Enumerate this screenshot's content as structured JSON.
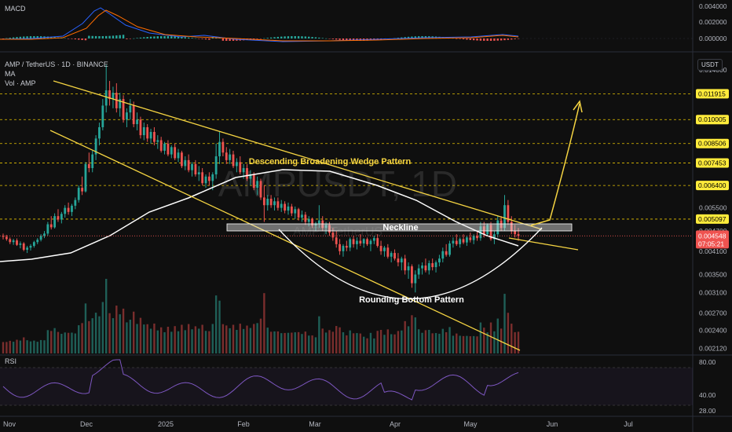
{
  "header": {
    "macd_label": "MACD",
    "symbol_line": "AMP / TetherUS · 1D · BINANCE",
    "ma_label": "MA",
    "vol_label": "Vol · AMP",
    "rsi_label": "RSI",
    "currency_button": "USDT"
  },
  "watermark": {
    "main": "AMPUSDT, 1D",
    "sub": "AMP / TetherUS"
  },
  "colors": {
    "up": "#26a69a",
    "down": "#ef5350",
    "pattern": "#f5d442",
    "ma": "#ffffff",
    "rsi": "#7e57c2",
    "macd": "#2962ff",
    "signal": "#ff6d00"
  },
  "chart_data": {
    "type": "candlestick",
    "price_axis": {
      "scale": "log",
      "range": [
        0.00205,
        0.0155
      ],
      "ticks": [
        "0.014000",
        "0.005500",
        "0.004700",
        "0.004100",
        "0.003500",
        "0.003100",
        "0.002700",
        "0.002400",
        "0.002120"
      ]
    },
    "x_axis": {
      "ticks": [
        "Nov",
        "Dec",
        "2025",
        "Feb",
        "Mar",
        "Apr",
        "May",
        "Jun",
        "Jul"
      ]
    },
    "target_levels": [
      {
        "value": "0.011915",
        "color": "#ffeb3b"
      },
      {
        "value": "0.010005",
        "color": "#ffeb3b"
      },
      {
        "value": "0.008506",
        "color": "#ffeb3b"
      },
      {
        "value": "0.007453",
        "color": "#ffeb3b"
      },
      {
        "value": "0.006400",
        "color": "#ffeb3b"
      },
      {
        "value": "0.005097",
        "color": "#ffeb3b"
      }
    ],
    "current_price": {
      "value": "0.004548",
      "countdown": "07:05:21",
      "color": "#ef5350"
    },
    "annotations": {
      "wedge": "Descending Broadening Wedge Pattern",
      "neckline": "Neckline",
      "bottom": "Rounding Bottom Pattern"
    },
    "macd_axis": {
      "ticks": [
        "0.004000",
        "0.002000",
        "0.000000"
      ]
    },
    "rsi_axis": {
      "ticks": [
        "80.00",
        "40.00",
        "28.00"
      ]
    },
    "candles": [
      [
        0.00455,
        0.00462,
        0.00444,
        0.00452
      ],
      [
        0.00452,
        0.00458,
        0.0044,
        0.00445
      ],
      [
        0.00445,
        0.0045,
        0.0043,
        0.00436
      ],
      [
        0.00436,
        0.00446,
        0.00428,
        0.00441
      ],
      [
        0.00441,
        0.00447,
        0.00425,
        0.00428
      ],
      [
        0.00428,
        0.00438,
        0.00418,
        0.00432
      ],
      [
        0.00432,
        0.00436,
        0.0041,
        0.00414
      ],
      [
        0.00414,
        0.00425,
        0.00405,
        0.0042
      ],
      [
        0.0042,
        0.0043,
        0.00412,
        0.00425
      ],
      [
        0.00425,
        0.0044,
        0.0042,
        0.00436
      ],
      [
        0.00436,
        0.00448,
        0.0043,
        0.00443
      ],
      [
        0.00443,
        0.0046,
        0.00438,
        0.00455
      ],
      [
        0.00455,
        0.0047,
        0.00448,
        0.00462
      ],
      [
        0.00462,
        0.005,
        0.00455,
        0.00492
      ],
      [
        0.00492,
        0.0052,
        0.00475,
        0.00482
      ],
      [
        0.00482,
        0.0053,
        0.00478,
        0.0052
      ],
      [
        0.0052,
        0.00545,
        0.005,
        0.00508
      ],
      [
        0.00508,
        0.00535,
        0.00495,
        0.00528
      ],
      [
        0.00528,
        0.0056,
        0.00515,
        0.0055
      ],
      [
        0.0055,
        0.0057,
        0.00525,
        0.00535
      ],
      [
        0.00535,
        0.00565,
        0.0052,
        0.00558
      ],
      [
        0.00558,
        0.0059,
        0.00545,
        0.0058
      ],
      [
        0.0058,
        0.0064,
        0.0057,
        0.0063
      ],
      [
        0.0063,
        0.0068,
        0.006,
        0.00615
      ],
      [
        0.00615,
        0.0075,
        0.0061,
        0.0074
      ],
      [
        0.0074,
        0.008,
        0.007,
        0.0072
      ],
      [
        0.0072,
        0.0081,
        0.007,
        0.0079
      ],
      [
        0.0079,
        0.009,
        0.0076,
        0.0088
      ],
      [
        0.0088,
        0.0098,
        0.0084,
        0.0095
      ],
      [
        0.0095,
        0.0115,
        0.0093,
        0.011
      ],
      [
        0.011,
        0.0145,
        0.0105,
        0.0122
      ],
      [
        0.0122,
        0.013,
        0.011,
        0.0115
      ],
      [
        0.0115,
        0.0125,
        0.0108,
        0.012
      ],
      [
        0.012,
        0.0128,
        0.0105,
        0.0108
      ],
      [
        0.0108,
        0.012,
        0.0102,
        0.0115
      ],
      [
        0.0115,
        0.0118,
        0.0098,
        0.01
      ],
      [
        0.01,
        0.0108,
        0.0095,
        0.0105
      ],
      [
        0.0105,
        0.0115,
        0.01,
        0.011
      ],
      [
        0.011,
        0.0113,
        0.0095,
        0.0097
      ],
      [
        0.0097,
        0.0105,
        0.0093,
        0.01
      ],
      [
        0.01,
        0.0102,
        0.0088,
        0.009
      ],
      [
        0.009,
        0.0098,
        0.0087,
        0.0095
      ],
      [
        0.0095,
        0.0097,
        0.0086,
        0.0088
      ],
      [
        0.0088,
        0.0094,
        0.0085,
        0.0092
      ],
      [
        0.0092,
        0.0095,
        0.0084,
        0.0086
      ],
      [
        0.0086,
        0.009,
        0.0082,
        0.0087
      ],
      [
        0.0087,
        0.0089,
        0.008,
        0.0081
      ],
      [
        0.0081,
        0.0086,
        0.0079,
        0.0085
      ],
      [
        0.0085,
        0.0087,
        0.0078,
        0.0079
      ],
      [
        0.0079,
        0.0084,
        0.0077,
        0.0083
      ],
      [
        0.0083,
        0.0085,
        0.0076,
        0.0077
      ],
      [
        0.0077,
        0.0082,
        0.0075,
        0.008
      ],
      [
        0.008,
        0.0081,
        0.0072,
        0.0073
      ],
      [
        0.0073,
        0.0078,
        0.0071,
        0.0076
      ],
      [
        0.0076,
        0.0079,
        0.007,
        0.0071
      ],
      [
        0.0071,
        0.0075,
        0.0068,
        0.0074
      ],
      [
        0.0074,
        0.0076,
        0.0068,
        0.0069
      ],
      [
        0.0069,
        0.0073,
        0.0066,
        0.007
      ],
      [
        0.007,
        0.0072,
        0.0064,
        0.0065
      ],
      [
        0.0065,
        0.0069,
        0.0063,
        0.0068
      ],
      [
        0.0068,
        0.007,
        0.0064,
        0.0066
      ],
      [
        0.0066,
        0.007,
        0.0062,
        0.0069
      ],
      [
        0.0069,
        0.0085,
        0.0067,
        0.0078
      ],
      [
        0.0078,
        0.0092,
        0.0074,
        0.0086
      ],
      [
        0.0086,
        0.0088,
        0.0078,
        0.008
      ],
      [
        0.008,
        0.0083,
        0.0074,
        0.0076
      ],
      [
        0.0076,
        0.0082,
        0.0074,
        0.0079
      ],
      [
        0.0079,
        0.0081,
        0.0072,
        0.0073
      ],
      [
        0.0073,
        0.0077,
        0.007,
        0.0075
      ],
      [
        0.0075,
        0.0078,
        0.0069,
        0.007
      ],
      [
        0.007,
        0.0074,
        0.0067,
        0.0072
      ],
      [
        0.0072,
        0.0074,
        0.0066,
        0.0067
      ],
      [
        0.0067,
        0.0071,
        0.0064,
        0.0069
      ],
      [
        0.0069,
        0.007,
        0.0062,
        0.0063
      ],
      [
        0.0063,
        0.0068,
        0.006,
        0.0066
      ],
      [
        0.0066,
        0.0067,
        0.0058,
        0.0059
      ],
      [
        0.0059,
        0.0064,
        0.005,
        0.0056
      ],
      [
        0.0056,
        0.006,
        0.0054,
        0.00585
      ],
      [
        0.00585,
        0.006,
        0.0055,
        0.0056
      ],
      [
        0.0056,
        0.0059,
        0.0054,
        0.00575
      ],
      [
        0.00575,
        0.0059,
        0.0054,
        0.0055
      ],
      [
        0.0055,
        0.0058,
        0.00535,
        0.00565
      ],
      [
        0.00565,
        0.00575,
        0.0053,
        0.0054
      ],
      [
        0.0054,
        0.0057,
        0.00525,
        0.00555
      ],
      [
        0.00555,
        0.00565,
        0.0052,
        0.0053
      ],
      [
        0.0053,
        0.00555,
        0.0051,
        0.00545
      ],
      [
        0.00545,
        0.0055,
        0.00505,
        0.00515
      ],
      [
        0.00515,
        0.0054,
        0.005,
        0.00525
      ],
      [
        0.00525,
        0.00535,
        0.0049,
        0.005
      ],
      [
        0.005,
        0.0052,
        0.00485,
        0.0051
      ],
      [
        0.0051,
        0.00515,
        0.0048,
        0.00488
      ],
      [
        0.00488,
        0.005,
        0.0047,
        0.00495
      ],
      [
        0.00495,
        0.0056,
        0.0048,
        0.00505
      ],
      [
        0.00505,
        0.0052,
        0.0047,
        0.0048
      ],
      [
        0.0048,
        0.005,
        0.0046,
        0.0049
      ],
      [
        0.0049,
        0.005,
        0.00455,
        0.00465
      ],
      [
        0.00465,
        0.0048,
        0.0044,
        0.0045
      ],
      [
        0.0045,
        0.0047,
        0.0042,
        0.0043
      ],
      [
        0.0043,
        0.00445,
        0.004,
        0.0041
      ],
      [
        0.0041,
        0.0043,
        0.00395,
        0.00425
      ],
      [
        0.00425,
        0.0044,
        0.0041,
        0.0042
      ],
      [
        0.0042,
        0.0045,
        0.0041,
        0.00445
      ],
      [
        0.00445,
        0.00455,
        0.0042,
        0.0043
      ],
      [
        0.0043,
        0.0045,
        0.00415,
        0.0044
      ],
      [
        0.0044,
        0.0046,
        0.00425,
        0.00432
      ],
      [
        0.00432,
        0.00448,
        0.0042,
        0.00445
      ],
      [
        0.00445,
        0.0045,
        0.00425,
        0.0043
      ],
      [
        0.0043,
        0.00445,
        0.0041,
        0.0044
      ],
      [
        0.0044,
        0.00455,
        0.0043,
        0.00448
      ],
      [
        0.00448,
        0.0046,
        0.0042,
        0.00425
      ],
      [
        0.00425,
        0.0044,
        0.004,
        0.0041
      ],
      [
        0.0041,
        0.00425,
        0.00395,
        0.0042
      ],
      [
        0.0042,
        0.0043,
        0.0039,
        0.00395
      ],
      [
        0.00395,
        0.0041,
        0.0038,
        0.00405
      ],
      [
        0.00405,
        0.00415,
        0.00385,
        0.0039
      ],
      [
        0.0039,
        0.00405,
        0.0037,
        0.0038
      ],
      [
        0.0038,
        0.00395,
        0.0036,
        0.0039
      ],
      [
        0.0039,
        0.004,
        0.0035,
        0.0036
      ],
      [
        0.0036,
        0.0038,
        0.0034,
        0.0037
      ],
      [
        0.0037,
        0.00375,
        0.0032,
        0.0033
      ],
      [
        0.0033,
        0.0036,
        0.0031,
        0.0035
      ],
      [
        0.0035,
        0.00375,
        0.0034,
        0.00365
      ],
      [
        0.00365,
        0.0038,
        0.0035,
        0.00372
      ],
      [
        0.00372,
        0.0039,
        0.00355,
        0.0036
      ],
      [
        0.0036,
        0.00385,
        0.0035,
        0.00378
      ],
      [
        0.00378,
        0.0039,
        0.0036,
        0.00368
      ],
      [
        0.00368,
        0.00385,
        0.00355,
        0.0038
      ],
      [
        0.0038,
        0.004,
        0.0037,
        0.0039
      ],
      [
        0.0039,
        0.0042,
        0.0038,
        0.0041
      ],
      [
        0.0041,
        0.0043,
        0.00395,
        0.004
      ],
      [
        0.004,
        0.0044,
        0.00395,
        0.00432
      ],
      [
        0.00432,
        0.0045,
        0.0042,
        0.0044
      ],
      [
        0.0044,
        0.0046,
        0.00425,
        0.0043
      ],
      [
        0.0043,
        0.0045,
        0.0042,
        0.00445
      ],
      [
        0.00445,
        0.0046,
        0.0043,
        0.00435
      ],
      [
        0.00435,
        0.00455,
        0.00425,
        0.0045
      ],
      [
        0.0045,
        0.00465,
        0.00435,
        0.00442
      ],
      [
        0.00442,
        0.0046,
        0.0043,
        0.00455
      ],
      [
        0.00455,
        0.0047,
        0.0044,
        0.00448
      ],
      [
        0.00448,
        0.005,
        0.0044,
        0.00485
      ],
      [
        0.00485,
        0.005,
        0.0045,
        0.0046
      ],
      [
        0.0046,
        0.00495,
        0.00455,
        0.0049
      ],
      [
        0.0049,
        0.005,
        0.0044,
        0.00445
      ],
      [
        0.00445,
        0.0047,
        0.0043,
        0.0046
      ],
      [
        0.0046,
        0.0052,
        0.0045,
        0.00505
      ],
      [
        0.00505,
        0.0052,
        0.0047,
        0.0048
      ],
      [
        0.0048,
        0.006,
        0.0047,
        0.0056
      ],
      [
        0.0056,
        0.0058,
        0.0049,
        0.005
      ],
      [
        0.005,
        0.0052,
        0.0046,
        0.0047
      ],
      [
        0.0047,
        0.0049,
        0.0045,
        0.0046
      ],
      [
        0.0046,
        0.0048,
        0.0044,
        0.00455
      ]
    ]
  }
}
